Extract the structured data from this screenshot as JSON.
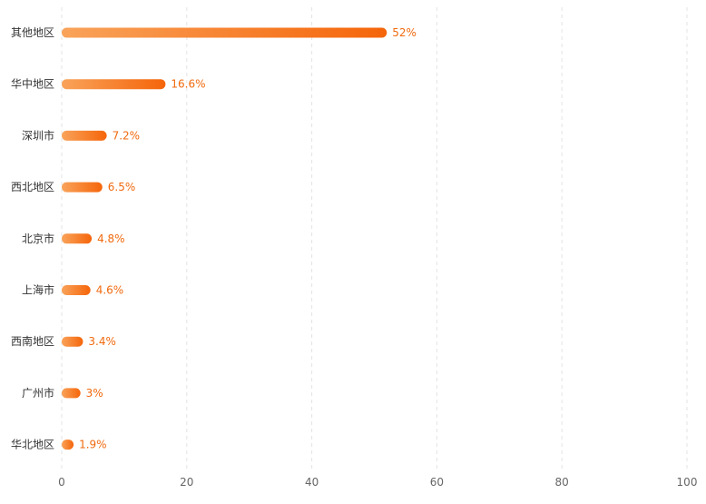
{
  "chart_data": {
    "type": "bar",
    "orientation": "horizontal",
    "categories": [
      "其他地区",
      "华中地区",
      "深圳市",
      "西北地区",
      "北京市",
      "上海市",
      "西南地区",
      "广州市",
      "华北地区"
    ],
    "values": [
      52,
      16.6,
      7.2,
      6.5,
      4.8,
      4.6,
      3.4,
      3,
      1.9
    ],
    "value_labels": [
      "52%",
      "16.6%",
      "7.2%",
      "6.5%",
      "4.8%",
      "4.6%",
      "3.4%",
      "3%",
      "1.9%"
    ],
    "x_ticks": [
      "0",
      "20",
      "40",
      "60",
      "80",
      "100"
    ],
    "xlim": [
      0,
      100
    ],
    "grid": true,
    "colors": {
      "bar_start": "#f9a35a",
      "bar_end": "#f5650a",
      "value_label": "#f06a0f",
      "grid": "#e3e3e3"
    }
  }
}
